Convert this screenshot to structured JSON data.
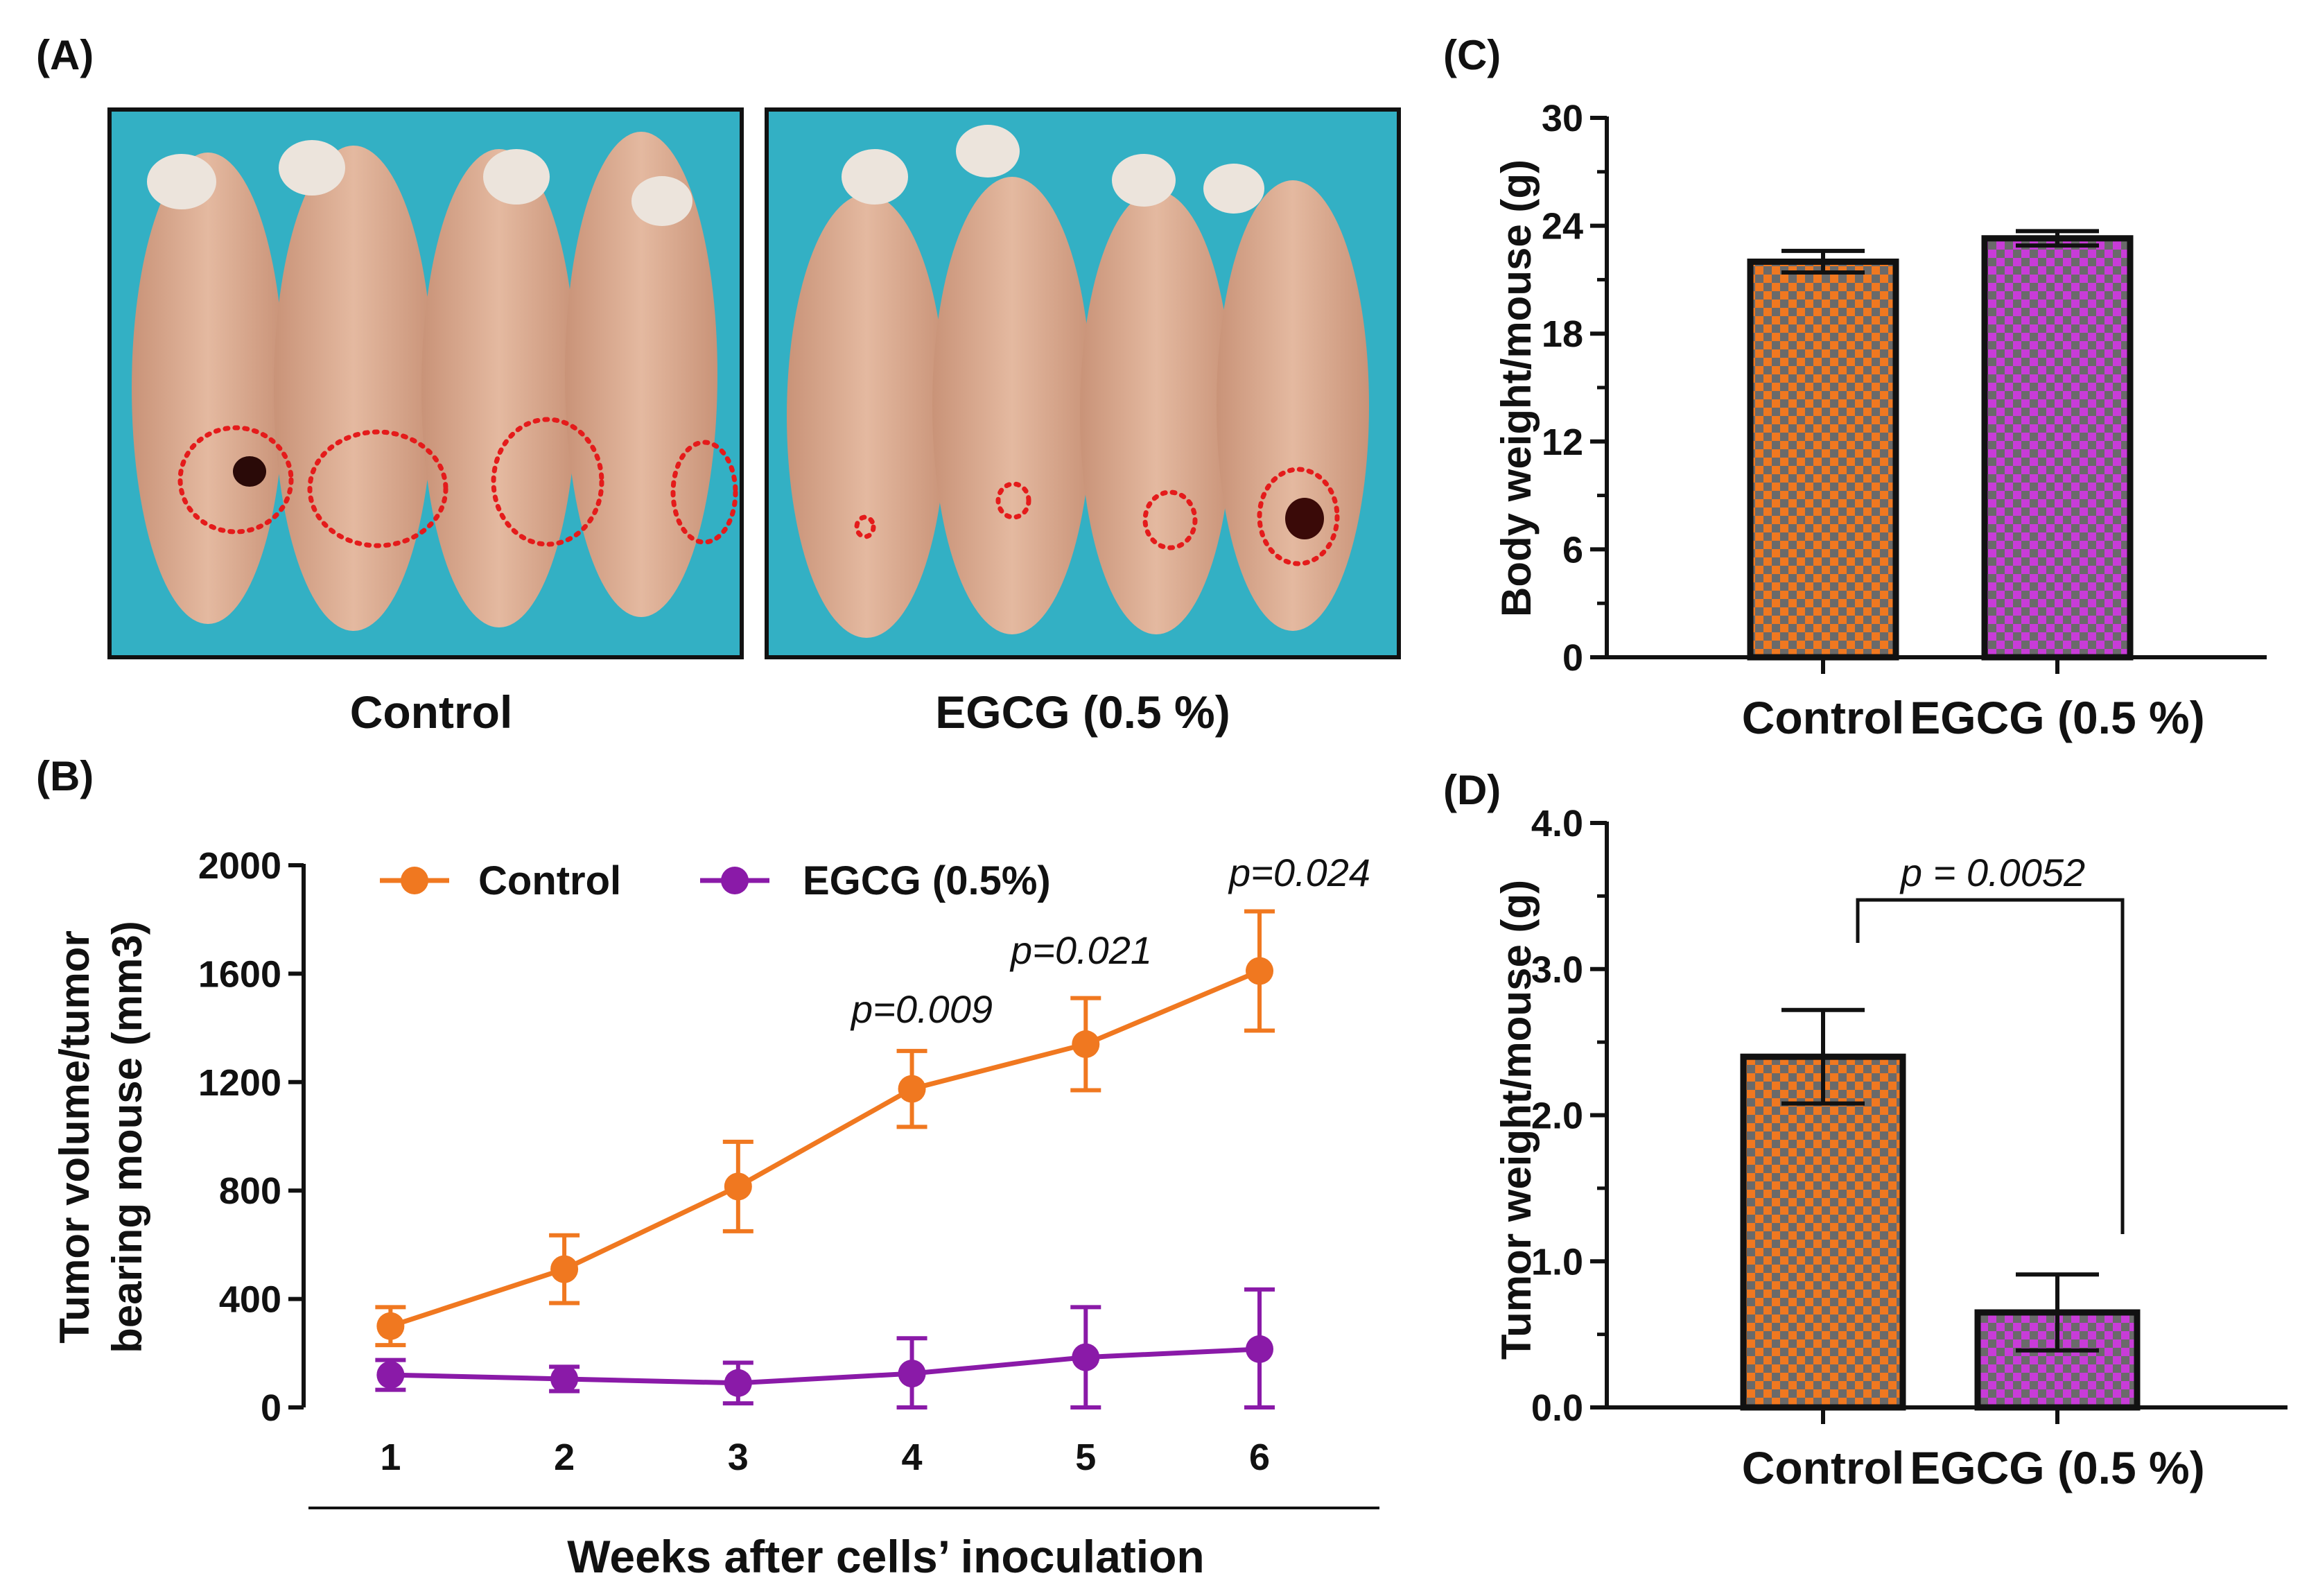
{
  "panels": {
    "A": {
      "label": "(A)",
      "groups": [
        "Control",
        "EGCG (0.5 %)"
      ],
      "image_description": "mouse-photo"
    },
    "B": {
      "label": "(B)"
    },
    "C": {
      "label": "(C)"
    },
    "D": {
      "label": "(D)"
    }
  },
  "colors": {
    "control": "#f07820",
    "egcg": "#8a1aa8",
    "control_bar_dark": "#5e5e5e",
    "egcg_bar_dark": "#5e5e5e",
    "photo_bg": "#33b0c4",
    "mouse_skin": "#d9a98f",
    "tumor_outline": "#e41b1b"
  },
  "chart_data": [
    {
      "id": "B",
      "type": "line",
      "title": "",
      "xlabel": "Weeks after cells’ inoculation",
      "ylabel": [
        "Tumor volume/tumor",
        "bearing mouse (mm3)"
      ],
      "x": [
        1,
        2,
        3,
        4,
        5,
        6
      ],
      "xticks": [
        "1",
        "2",
        "3",
        "4",
        "5",
        "6"
      ],
      "ylim": [
        0,
        2000
      ],
      "yticks": [
        "0",
        "400",
        "800",
        "1200",
        "1600",
        "2000"
      ],
      "series": [
        {
          "name": "Control",
          "color": "#f07820",
          "values": [
            300,
            510,
            815,
            1175,
            1340,
            1610
          ],
          "err": [
            70,
            125,
            165,
            140,
            170,
            220
          ]
        },
        {
          "name": "EGCG (0.5%)",
          "color": "#8a1aa8",
          "values": [
            120,
            105,
            90,
            125,
            185,
            215
          ],
          "err": [
            55,
            45,
            75,
            130,
            185,
            220
          ]
        }
      ],
      "annotations": [
        "p=0.009",
        "p=0.021",
        "p=0.024"
      ],
      "legend": "top"
    },
    {
      "id": "C",
      "type": "bar",
      "categories": [
        "Control",
        "EGCG (0.5 %)"
      ],
      "values": [
        22.0,
        23.3
      ],
      "err": [
        0.6,
        0.4
      ],
      "ylabel": "Body weight/mouse (g)",
      "ylim": [
        0,
        30
      ],
      "yticks": [
        "0",
        "6",
        "12",
        "18",
        "24",
        "30"
      ],
      "colors": [
        "#f07820",
        "#c83cd8"
      ]
    },
    {
      "id": "D",
      "type": "bar",
      "categories": [
        "Control",
        "EGCG (0.5 %)"
      ],
      "values": [
        2.4,
        0.65
      ],
      "err": [
        0.32,
        0.26
      ],
      "ylabel": "Tumor weight/mouse (g)",
      "ylim": [
        0,
        4.0
      ],
      "yticks": [
        "0.0",
        "1.0",
        "2.0",
        "3.0",
        "4.0"
      ],
      "colors": [
        "#f07820",
        "#c83cd8"
      ],
      "annotations": [
        "p = 0.0052"
      ]
    }
  ]
}
